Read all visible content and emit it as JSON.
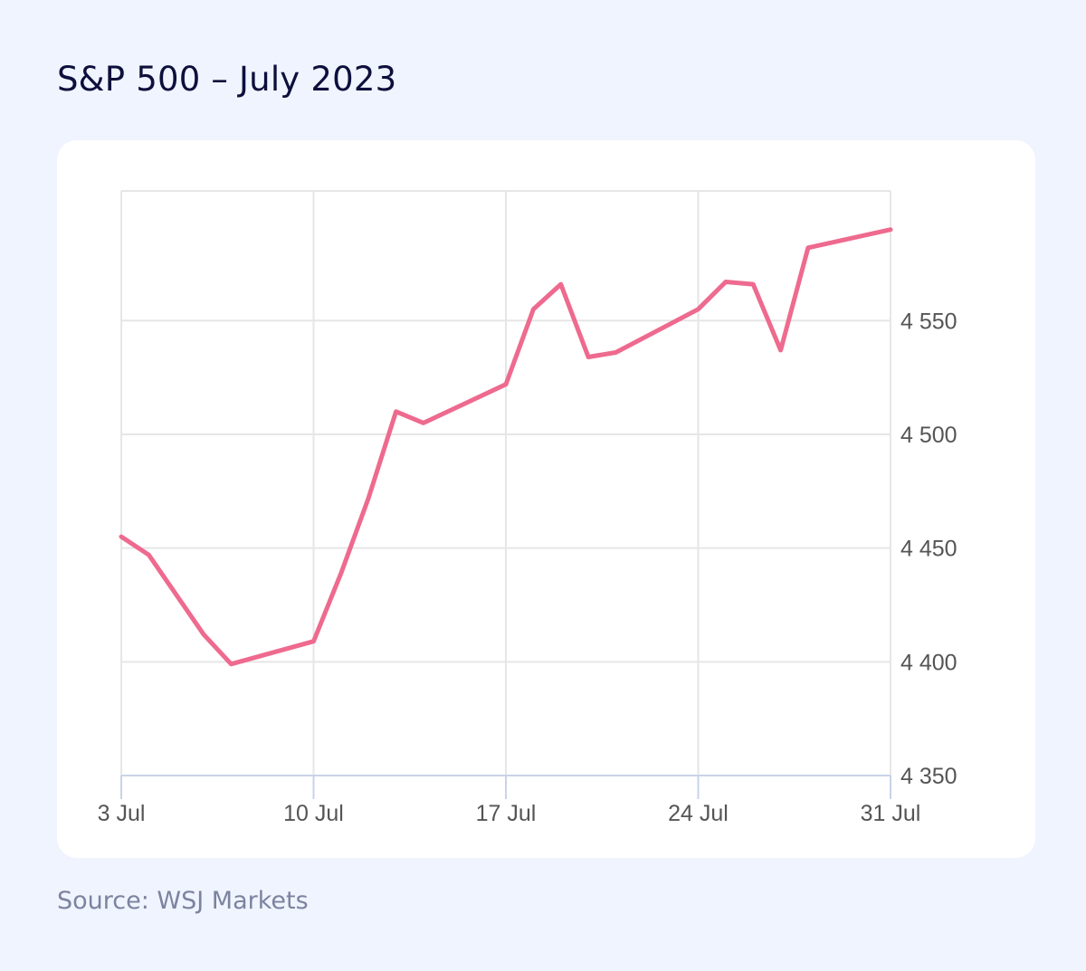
{
  "title": "S&P 500 – July 2023",
  "source": "Source: WSJ Markets",
  "colors": {
    "background": "#f0f4fe",
    "card": "#ffffff",
    "line": "#ee6a8e",
    "grid": "#e6e6e6",
    "axis": "#c9d3e8",
    "title": "#0d0f3c",
    "source": "#7c839f",
    "tick_text": "#555555"
  },
  "chart_data": {
    "type": "line",
    "title": "S&P 500 – July 2023",
    "xlabel": "",
    "ylabel": "",
    "x_ticks": [
      {
        "day": 3,
        "label": "3 Jul"
      },
      {
        "day": 10,
        "label": "10 Jul"
      },
      {
        "day": 17,
        "label": "17 Jul"
      },
      {
        "day": 24,
        "label": "24 Jul"
      },
      {
        "day": 31,
        "label": "31 Jul"
      }
    ],
    "y_ticks": [
      {
        "value": 4350,
        "label": "4 350"
      },
      {
        "value": 4400,
        "label": "4 400"
      },
      {
        "value": 4450,
        "label": "4 450"
      },
      {
        "value": 4500,
        "label": "4 500"
      },
      {
        "value": 4550,
        "label": "4 550"
      }
    ],
    "xlim": [
      3,
      31
    ],
    "ylim": [
      4350,
      4607
    ],
    "grid": true,
    "y_axis_position": "right",
    "series": [
      {
        "x": [
          "2023-07-03",
          "2023-07-04",
          "2023-07-06",
          "2023-07-07",
          "2023-07-10",
          "2023-07-11",
          "2023-07-12",
          "2023-07-13",
          "2023-07-14",
          "2023-07-17",
          "2023-07-18",
          "2023-07-19",
          "2023-07-20",
          "2023-07-21",
          "2023-07-24",
          "2023-07-25",
          "2023-07-26",
          "2023-07-27",
          "2023-07-28",
          "2023-07-31"
        ],
        "y": [
          4455,
          4447,
          4412,
          4399,
          4409,
          4439,
          4472,
          4510,
          4505,
          4522,
          4555,
          4566,
          4534,
          4536,
          4555,
          4567,
          4566,
          4537,
          4582,
          4590
        ]
      }
    ]
  }
}
